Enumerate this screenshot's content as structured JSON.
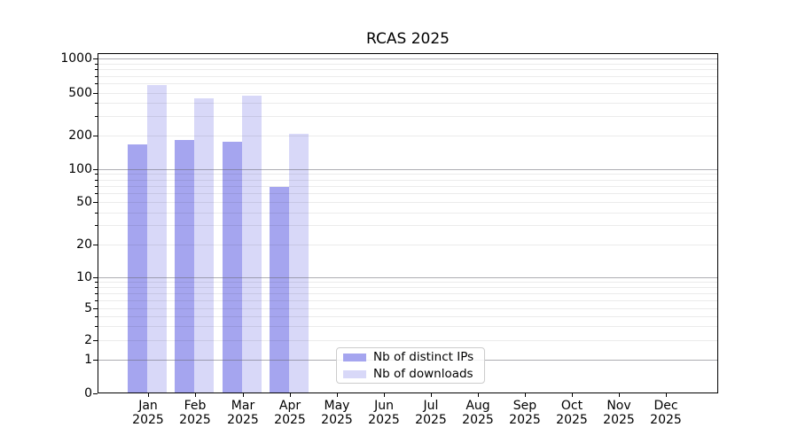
{
  "chart_data": {
    "type": "bar",
    "title": "RCAS 2025",
    "categories": [
      "Jan",
      "Feb",
      "Mar",
      "Apr",
      "May",
      "Jun",
      "Jul",
      "Aug",
      "Sep",
      "Oct",
      "Nov",
      "Dec"
    ],
    "year_label": "2025",
    "series": [
      {
        "name": "Nb of distinct IPs",
        "color": "#a5a5ef",
        "values": [
          165,
          180,
          173,
          68,
          null,
          null,
          null,
          null,
          null,
          null,
          null,
          null
        ]
      },
      {
        "name": "Nb of downloads",
        "color": "#d8d8f8",
        "values": [
          580,
          445,
          470,
          207,
          null,
          null,
          null,
          null,
          null,
          null,
          null,
          null
        ]
      }
    ],
    "y_ticks": [
      1000,
      500,
      200,
      100,
      50,
      20,
      10,
      5,
      2,
      1,
      0
    ],
    "y_scale": "symlog",
    "ylim": [
      0,
      1100
    ],
    "xlabel": "",
    "ylabel": "",
    "grid": "horizontal, major and minor, drawn over bars",
    "legend_position": "bottom-center-inside",
    "colors": {
      "major_grid": "#b0b0b0",
      "minor_grid": "#e6e6e6",
      "axis": "#000000",
      "legend_border": "#cccccc"
    }
  }
}
